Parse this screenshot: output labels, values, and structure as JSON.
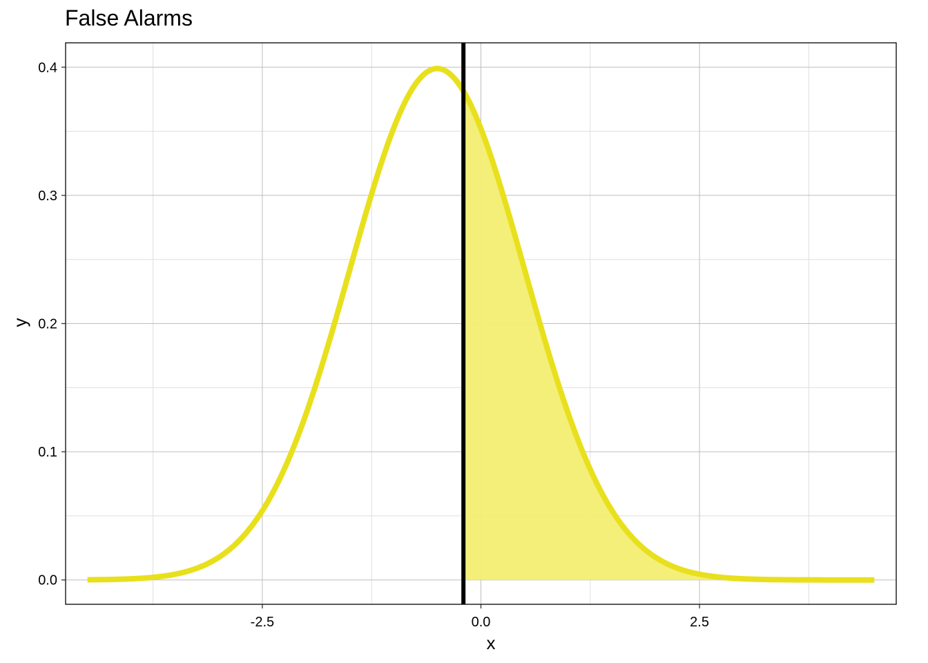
{
  "chart_data": {
    "type": "area",
    "title": "False Alarms",
    "xlabel": "x",
    "ylabel": "y",
    "xlim": [
      -4.75,
      4.75
    ],
    "ylim": [
      -0.019,
      0.419
    ],
    "x_ticks": [
      -2.5,
      0.0,
      2.5
    ],
    "x_tick_labels": [
      "-2.5",
      "0.0",
      "2.5"
    ],
    "y_ticks": [
      0.0,
      0.1,
      0.2,
      0.3,
      0.4
    ],
    "y_tick_labels": [
      "0.0",
      "0.1",
      "0.2",
      "0.3",
      "0.4"
    ],
    "grid": true,
    "distribution": {
      "kind": "normal",
      "mean": -0.5,
      "sd": 1,
      "x_range": [
        -4.5,
        4.5
      ]
    },
    "criterion": -0.2,
    "shaded_region": [
      -0.2,
      4.5
    ],
    "colors": {
      "curve": "#E8E01C",
      "fill": "#F3EE72",
      "criterion_line": "#000000"
    }
  }
}
